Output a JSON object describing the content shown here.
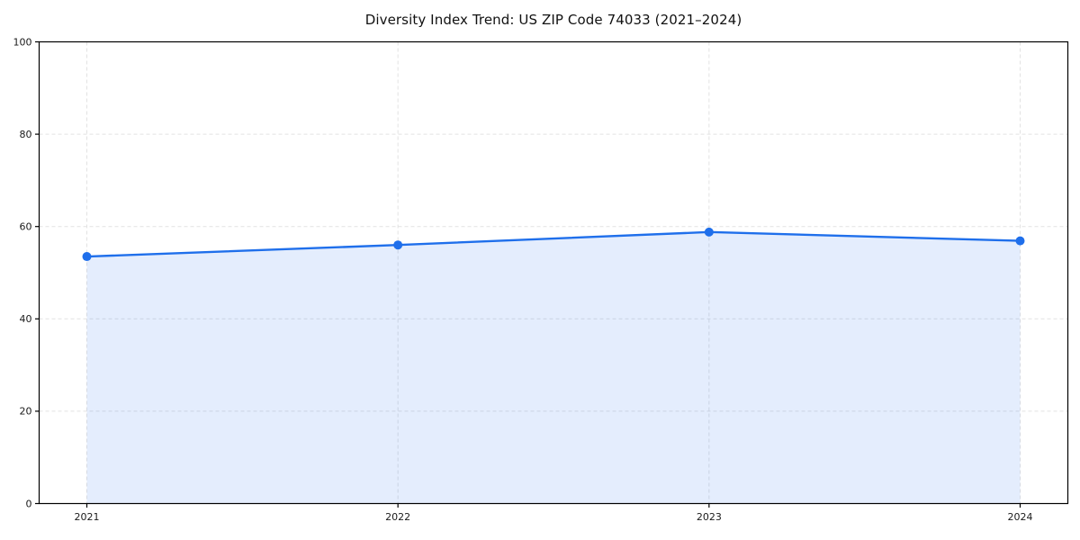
{
  "title": "Diversity Index Trend: US ZIP Code 74033 (2021–2024)",
  "chart_data": {
    "type": "area",
    "title": "Diversity Index Trend: US ZIP Code 74033 (2021–2024)",
    "x": [
      "2021",
      "2022",
      "2023",
      "2024"
    ],
    "series": [
      {
        "name": "Diversity Index",
        "values": [
          53.5,
          56.0,
          58.8,
          56.9
        ]
      }
    ],
    "xlabel": "",
    "ylabel": "",
    "ylim": [
      0,
      100
    ],
    "yticks": [
      0,
      20,
      40,
      60,
      80,
      100
    ],
    "grid": "dashed, both axes",
    "legend": "none",
    "colors": {
      "line": "#1f6feb",
      "marker": "#1f6feb",
      "fill": "rgba(31, 111, 235, 0.12)",
      "gridline": "#e2e2e2",
      "spine": "#000000",
      "tick_text": "#1a1a1a",
      "background": "#ffffff"
    }
  }
}
